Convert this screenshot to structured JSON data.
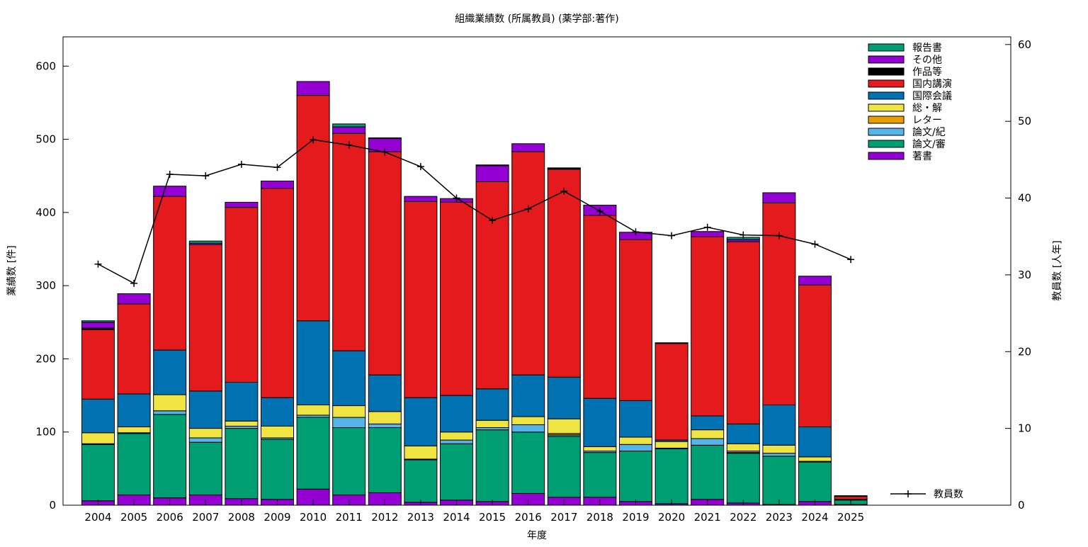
{
  "chart_data": {
    "type": "bar",
    "stacked": true,
    "title": "組織業績数 (所属教員) (薬学部:著作)",
    "xlabel": "年度",
    "ylabel": "業績数 [件]",
    "y2label": "教員数 [人年]",
    "ylim": [
      0,
      640
    ],
    "y2lim": [
      0,
      61
    ],
    "y_ticks": [
      0,
      100,
      200,
      300,
      400,
      500,
      600
    ],
    "y2_ticks": [
      0,
      10,
      20,
      30,
      40,
      50,
      60
    ],
    "grid": false,
    "legend_position": "top-right",
    "categories": [
      "2004",
      "2005",
      "2006",
      "2007",
      "2008",
      "2009",
      "2010",
      "2011",
      "2012",
      "2013",
      "2014",
      "2015",
      "2016",
      "2017",
      "2018",
      "2019",
      "2020",
      "2021",
      "2022",
      "2023",
      "2024",
      "2025"
    ],
    "series": [
      {
        "name": "著書",
        "color": "#9400d3",
        "values": [
          6,
          14,
          10,
          14,
          9,
          8,
          22,
          14,
          17,
          4,
          7,
          5,
          16,
          11,
          11,
          5,
          2,
          8,
          3,
          1,
          5,
          1
        ]
      },
      {
        "name": "論文/審",
        "color": "#009e73",
        "values": [
          77,
          84,
          114,
          72,
          96,
          82,
          98,
          92,
          89,
          58,
          77,
          98,
          84,
          83,
          61,
          69,
          75,
          74,
          68,
          66,
          54,
          6
        ]
      },
      {
        "name": "論文/紀",
        "color": "#56b4e9",
        "values": [
          1,
          1,
          5,
          6,
          3,
          2,
          3,
          14,
          5,
          1,
          5,
          3,
          10,
          2,
          2,
          9,
          1,
          9,
          1,
          4,
          1,
          0
        ]
      },
      {
        "name": "レター",
        "color": "#e69f00",
        "values": [
          0,
          0,
          0,
          0,
          0,
          0,
          0,
          0,
          0,
          0,
          0,
          0,
          0,
          2,
          0,
          0,
          0,
          0,
          2,
          0,
          0,
          0
        ]
      },
      {
        "name": "総・解",
        "color": "#f0e442",
        "values": [
          15,
          8,
          22,
          13,
          7,
          16,
          14,
          16,
          17,
          18,
          11,
          10,
          11,
          20,
          6,
          10,
          9,
          12,
          10,
          11,
          6,
          0
        ]
      },
      {
        "name": "国際会議",
        "color": "#0072b2",
        "values": [
          46,
          45,
          61,
          51,
          53,
          39,
          115,
          75,
          50,
          66,
          50,
          43,
          57,
          57,
          66,
          50,
          2,
          19,
          27,
          55,
          41,
          1
        ]
      },
      {
        "name": "国内講演",
        "color": "#e41a1c",
        "values": [
          95,
          123,
          210,
          200,
          239,
          286,
          308,
          297,
          305,
          268,
          264,
          283,
          305,
          284,
          250,
          220,
          132,
          245,
          249,
          276,
          194,
          4
        ]
      },
      {
        "name": "作品等",
        "color": "#000000",
        "values": [
          2,
          0,
          0,
          0,
          0,
          0,
          0,
          0,
          0,
          0,
          0,
          0,
          0,
          0,
          0,
          0,
          1,
          0,
          0,
          0,
          0,
          0
        ]
      },
      {
        "name": "その他",
        "color": "#9400d3",
        "values": [
          8,
          14,
          14,
          2,
          7,
          10,
          19,
          9,
          18,
          7,
          5,
          22,
          11,
          1,
          14,
          10,
          0,
          7,
          3,
          14,
          12,
          0
        ]
      },
      {
        "name": "報告書",
        "color": "#009e73",
        "values": [
          2,
          0,
          0,
          3,
          0,
          0,
          0,
          4,
          1,
          0,
          0,
          1,
          0,
          1,
          0,
          0,
          0,
          0,
          3,
          0,
          0,
          1
        ]
      }
    ],
    "line_series": {
      "name": "教員数",
      "axis": "y2",
      "color": "#000000",
      "values": [
        31.4,
        28.9,
        43.1,
        42.9,
        44.4,
        44.0,
        47.6,
        46.9,
        46.0,
        44.1,
        40.0,
        37.1,
        38.6,
        40.9,
        38.3,
        35.6,
        35.1,
        36.2,
        35.2,
        35.1,
        34.0,
        32.0
      ]
    }
  }
}
